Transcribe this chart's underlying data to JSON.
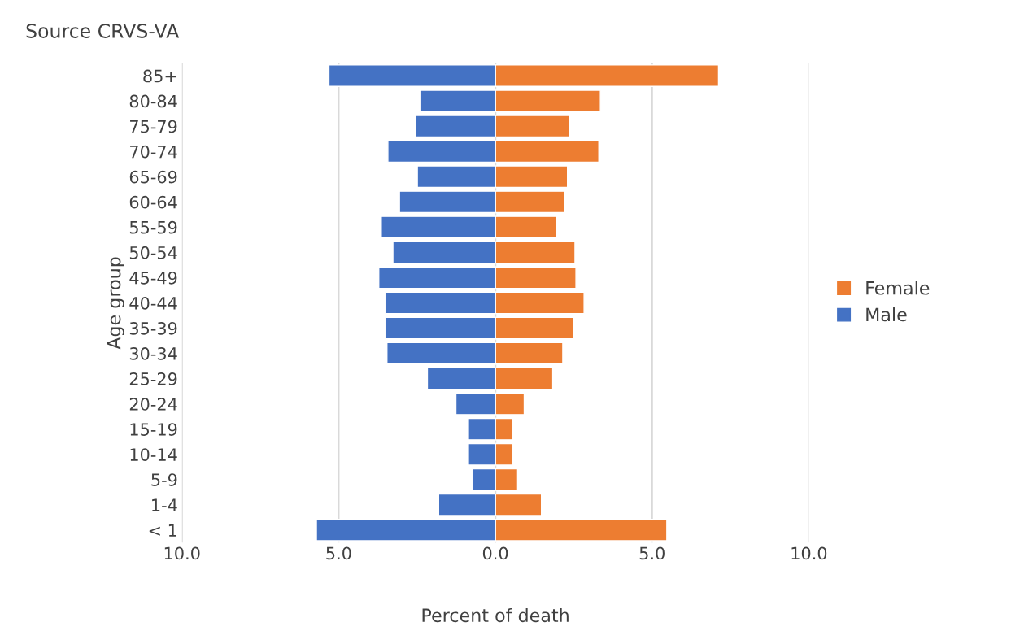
{
  "chart_data": {
    "type": "bar",
    "orientation": "horizontal",
    "title": "Source CRVS-VA",
    "xlabel": "Percent of death",
    "ylabel": "Age group",
    "categories": [
      "85+",
      "80-84",
      "75-79",
      "70-74",
      "65-69",
      "60-64",
      "55-59",
      "50-54",
      "45-49",
      "40-44",
      "35-39",
      "30-34",
      "25-29",
      "20-24",
      "15-19",
      "10-14",
      "5-9",
      "1-4",
      "< 1"
    ],
    "series": [
      {
        "name": "Female",
        "color": "#ed7d31",
        "values": [
          7.12,
          3.35,
          2.36,
          3.3,
          2.3,
          2.2,
          1.94,
          2.54,
          2.57,
          2.83,
          2.49,
          2.15,
          1.83,
          0.92,
          0.55,
          0.55,
          0.71,
          1.47,
          5.47
        ]
      },
      {
        "name": "Male",
        "color": "#4472c4",
        "values": [
          -5.31,
          -2.41,
          -2.54,
          -3.43,
          -2.49,
          -3.06,
          -3.64,
          -3.27,
          -3.72,
          -3.51,
          -3.51,
          -3.46,
          -2.17,
          -1.26,
          -0.86,
          -0.86,
          -0.73,
          -1.81,
          -5.71
        ]
      }
    ],
    "xlim": [
      -10,
      10
    ],
    "xticks": [
      {
        "value": -10,
        "label": "10.0"
      },
      {
        "value": -5,
        "label": "5.0"
      },
      {
        "value": 0,
        "label": "0.0"
      },
      {
        "value": 5,
        "label": "5.0"
      },
      {
        "value": 10,
        "label": "10.0"
      }
    ],
    "grid": "x",
    "legend": "right",
    "stacked": true
  }
}
